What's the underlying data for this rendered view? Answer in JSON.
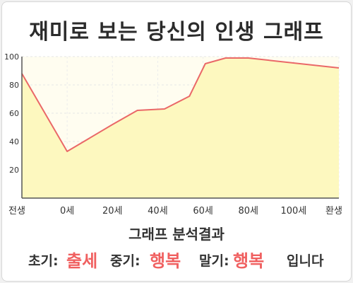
{
  "title": "재미로 보는 당신의 인생 그래프",
  "chart_data": {
    "type": "area",
    "x_categories": [
      "전생",
      "0세",
      "20세",
      "40세",
      "60세",
      "80세",
      "100세",
      "환생"
    ],
    "y_ticks": [
      20,
      40,
      60,
      80,
      100
    ],
    "ylim": [
      0,
      100
    ],
    "grid": true,
    "points": [
      {
        "x": 0,
        "y": 88
      },
      {
        "x": 1,
        "y": 33
      },
      {
        "x": 2,
        "y": 52
      },
      {
        "x": 2.55,
        "y": 62
      },
      {
        "x": 3.15,
        "y": 63
      },
      {
        "x": 3.7,
        "y": 72
      },
      {
        "x": 4.05,
        "y": 95
      },
      {
        "x": 4.5,
        "y": 99
      },
      {
        "x": 5,
        "y": 99
      },
      {
        "x": 7,
        "y": 92
      }
    ],
    "line_color": "#ea6868",
    "fill_color": "#fdf8bf",
    "upper_fill_color": "#fffdf0"
  },
  "analysis": {
    "heading": "그래프 분석결과",
    "early_label": "초기:",
    "early_value": "출세",
    "middle_label": "중기:",
    "middle_value": "행복",
    "late_label": "말기:",
    "late_value": "행복",
    "suffix": "입니다"
  },
  "colors": {
    "accent": "#f06060",
    "text": "#333333",
    "axis": "#555555"
  }
}
